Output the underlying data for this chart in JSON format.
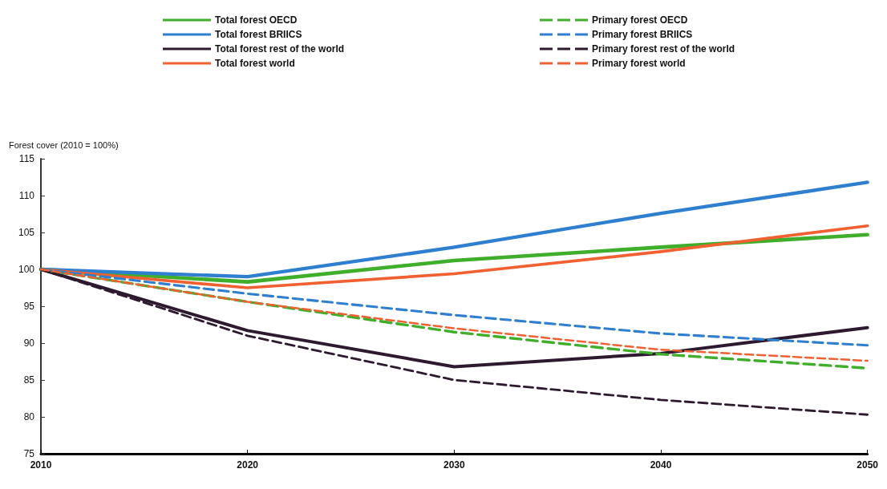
{
  "chart_data": {
    "type": "line",
    "ylabel": "Forest cover (2010 = 100%)",
    "x": [
      2010,
      2020,
      2030,
      2040,
      2050
    ],
    "xlim": [
      2010,
      2050
    ],
    "xticks": [
      2010,
      2020,
      2030,
      2040,
      2050
    ],
    "ylim": [
      75,
      115
    ],
    "yticks": [
      75,
      80,
      85,
      90,
      95,
      100,
      105,
      110,
      115
    ],
    "grid": false,
    "legend": "top",
    "marker": "none",
    "series": [
      {
        "name": "Total forest OECD",
        "color": "#3fae2a",
        "line_style": "solid",
        "values": [
          100,
          98.3,
          101.2,
          103,
          104.7
        ]
      },
      {
        "name": "Total forest BRIICS",
        "color": "#2f7fd0",
        "line_style": "solid",
        "values": [
          100,
          99.0,
          103.0,
          107.6,
          111.8
        ]
      },
      {
        "name": "Total forest rest of the world",
        "color": "#2d1a2e",
        "line_style": "solid",
        "values": [
          100,
          91.7,
          86.8,
          88.6,
          92.1
        ]
      },
      {
        "name": "Total forest world",
        "color": "#f06030",
        "line_style": "solid",
        "values": [
          100,
          97.5,
          99.4,
          102.4,
          105.9
        ]
      },
      {
        "name": "Primary forest OECD",
        "color": "#3fae2a",
        "line_style": "dashed",
        "values": [
          100,
          95.6,
          91.5,
          88.5,
          86.6
        ]
      },
      {
        "name": "Primary forest BRIICS",
        "color": "#2f7fd0",
        "line_style": "dashed",
        "values": [
          100,
          96.7,
          93.8,
          91.3,
          89.7
        ]
      },
      {
        "name": "Primary forest rest of the world",
        "color": "#2d1a2e",
        "line_style": "dashed",
        "values": [
          100,
          91.0,
          85.0,
          82.3,
          80.3
        ]
      },
      {
        "name": "Primary forest world",
        "color": "#f06030",
        "line_style": "dashed",
        "values": [
          100,
          95.6,
          92.0,
          89.1,
          87.6
        ]
      }
    ]
  }
}
